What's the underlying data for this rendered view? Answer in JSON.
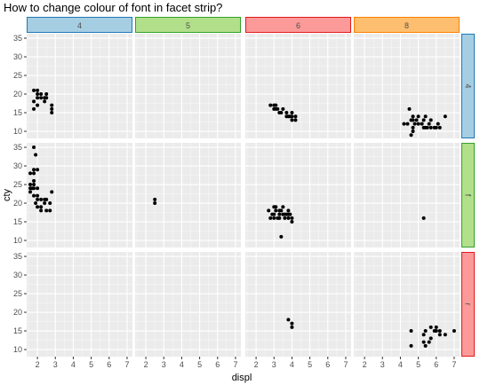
{
  "title": "How to change colour of font in facet strip?",
  "chart_data": {
    "type": "scatter",
    "title": "How to change colour of font in facet strip?",
    "xlabel": "displ",
    "ylabel": "cty",
    "xlim": [
      1.4,
      7.3
    ],
    "ylim": [
      8.1,
      36.2
    ],
    "x_ticks": [
      2,
      3,
      4,
      5,
      6,
      7
    ],
    "y_ticks": [
      10,
      15,
      20,
      25,
      30,
      35
    ],
    "grid": true,
    "col_strips": [
      {
        "label": "4",
        "fill": "#a6cee3",
        "border": "#1f78b4"
      },
      {
        "label": "5",
        "fill": "#b2df8a",
        "border": "#33a02c"
      },
      {
        "label": "6",
        "fill": "#fb9a99",
        "border": "#e31a1c"
      },
      {
        "label": "8",
        "fill": "#fdbf6f",
        "border": "#ff7f00"
      }
    ],
    "row_strips": [
      {
        "label": "4",
        "fill": "#a6cee3",
        "border": "#1f78b4"
      },
      {
        "label": "f",
        "fill": "#b2df8a",
        "border": "#33a02c"
      },
      {
        "label": "r",
        "fill": "#fb9a99",
        "border": "#e31a1c"
      }
    ],
    "panels": [
      {
        "row": 0,
        "col": 0,
        "points": [
          [
            1.8,
            18
          ],
          [
            1.8,
            21
          ],
          [
            2.0,
            20
          ],
          [
            2.0,
            21
          ],
          [
            2.2,
            20
          ],
          [
            2.4,
            19
          ],
          [
            2.0,
            19
          ],
          [
            2.5,
            20
          ],
          [
            2.5,
            19
          ],
          [
            2.4,
            18
          ],
          [
            2.8,
            17
          ],
          [
            2.8,
            15
          ],
          [
            2.8,
            16
          ],
          [
            1.8,
            16
          ],
          [
            2.2,
            19
          ],
          [
            2.0,
            17
          ]
        ]
      },
      {
        "row": 0,
        "col": 1,
        "points": []
      },
      {
        "row": 0,
        "col": 2,
        "points": [
          [
            2.8,
            17
          ],
          [
            3.0,
            17
          ],
          [
            3.1,
            16
          ],
          [
            3.3,
            15
          ],
          [
            3.7,
            15
          ],
          [
            4.0,
            14
          ],
          [
            4.2,
            14
          ],
          [
            3.0,
            16
          ],
          [
            3.4,
            15
          ],
          [
            3.5,
            16
          ],
          [
            3.8,
            14
          ],
          [
            4.0,
            13
          ],
          [
            3.7,
            14
          ],
          [
            3.9,
            14
          ],
          [
            3.1,
            17
          ],
          [
            4.0,
            15
          ],
          [
            4.2,
            13
          ],
          [
            3.2,
            16
          ]
        ]
      },
      {
        "row": 0,
        "col": 3,
        "points": [
          [
            4.2,
            12
          ],
          [
            4.4,
            12
          ],
          [
            4.6,
            13
          ],
          [
            4.7,
            14
          ],
          [
            5.0,
            14
          ],
          [
            5.3,
            13
          ],
          [
            5.4,
            11
          ],
          [
            5.7,
            13
          ],
          [
            6.1,
            12
          ],
          [
            6.5,
            14
          ],
          [
            4.7,
            13
          ],
          [
            4.7,
            11
          ],
          [
            4.6,
            9
          ],
          [
            4.8,
            12
          ],
          [
            4.5,
            16
          ],
          [
            5.2,
            12
          ],
          [
            5.5,
            11
          ],
          [
            5.6,
            12
          ],
          [
            5.9,
            11
          ],
          [
            6.0,
            11
          ],
          [
            5.4,
            14
          ],
          [
            5.7,
            11
          ],
          [
            4.9,
            13
          ],
          [
            4.7,
            10
          ],
          [
            5.3,
            11
          ],
          [
            6.2,
            11
          ],
          [
            5.0,
            12
          ]
        ]
      },
      {
        "row": 1,
        "col": 0,
        "points": [
          [
            1.8,
            35
          ],
          [
            1.9,
            33
          ],
          [
            1.8,
            28
          ],
          [
            1.8,
            26
          ],
          [
            1.6,
            24
          ],
          [
            1.6,
            25
          ],
          [
            1.7,
            24
          ],
          [
            1.8,
            25
          ],
          [
            1.6,
            28
          ],
          [
            2.0,
            22
          ],
          [
            2.0,
            21
          ],
          [
            2.2,
            21
          ],
          [
            2.4,
            21
          ],
          [
            2.5,
            21
          ],
          [
            2.0,
            19
          ],
          [
            2.5,
            18
          ],
          [
            2.7,
            20
          ],
          [
            2.8,
            23
          ],
          [
            2.2,
            19
          ],
          [
            1.9,
            20
          ],
          [
            1.8,
            22
          ],
          [
            1.8,
            24
          ],
          [
            2.0,
            24
          ],
          [
            1.6,
            23
          ],
          [
            2.4,
            20
          ],
          [
            2.7,
            18
          ],
          [
            1.8,
            29
          ],
          [
            2.0,
            29
          ],
          [
            2.2,
            18
          ]
        ]
      },
      {
        "row": 1,
        "col": 1,
        "points": [
          [
            2.5,
            20
          ],
          [
            2.5,
            21
          ]
        ]
      },
      {
        "row": 1,
        "col": 2,
        "points": [
          [
            3.1,
            18
          ],
          [
            3.3,
            17
          ],
          [
            3.4,
            11
          ],
          [
            3.5,
            17
          ],
          [
            3.6,
            17
          ],
          [
            3.8,
            16
          ],
          [
            3.0,
            19
          ],
          [
            3.3,
            18
          ],
          [
            3.8,
            17
          ],
          [
            3.5,
            19
          ],
          [
            2.7,
            18
          ],
          [
            2.8,
            16
          ],
          [
            3.0,
            17
          ],
          [
            3.2,
            16
          ],
          [
            3.9,
            17
          ],
          [
            4.0,
            15
          ],
          [
            3.1,
            19
          ],
          [
            3.4,
            18
          ],
          [
            3.6,
            16
          ],
          [
            2.9,
            17
          ],
          [
            3.7,
            17
          ],
          [
            3.0,
            16
          ],
          [
            3.3,
            16
          ],
          [
            3.8,
            18
          ],
          [
            4.0,
            16
          ]
        ]
      },
      {
        "row": 1,
        "col": 3,
        "points": [
          [
            5.3,
            16
          ]
        ]
      },
      {
        "row": 2,
        "col": 0,
        "points": []
      },
      {
        "row": 2,
        "col": 1,
        "points": []
      },
      {
        "row": 2,
        "col": 2,
        "points": [
          [
            3.8,
            18
          ],
          [
            4.0,
            17
          ],
          [
            4.0,
            16
          ]
        ]
      },
      {
        "row": 2,
        "col": 3,
        "points": [
          [
            4.6,
            15
          ],
          [
            4.6,
            11
          ],
          [
            5.3,
            14
          ],
          [
            5.4,
            11
          ],
          [
            5.7,
            13
          ],
          [
            6.0,
            15
          ],
          [
            6.2,
            14
          ],
          [
            6.5,
            14
          ],
          [
            5.7,
            16
          ],
          [
            6.0,
            16
          ],
          [
            5.4,
            15
          ],
          [
            5.3,
            12
          ],
          [
            5.6,
            12
          ],
          [
            6.2,
            15
          ],
          [
            7.0,
            15
          ],
          [
            5.9,
            15
          ]
        ]
      }
    ]
  }
}
